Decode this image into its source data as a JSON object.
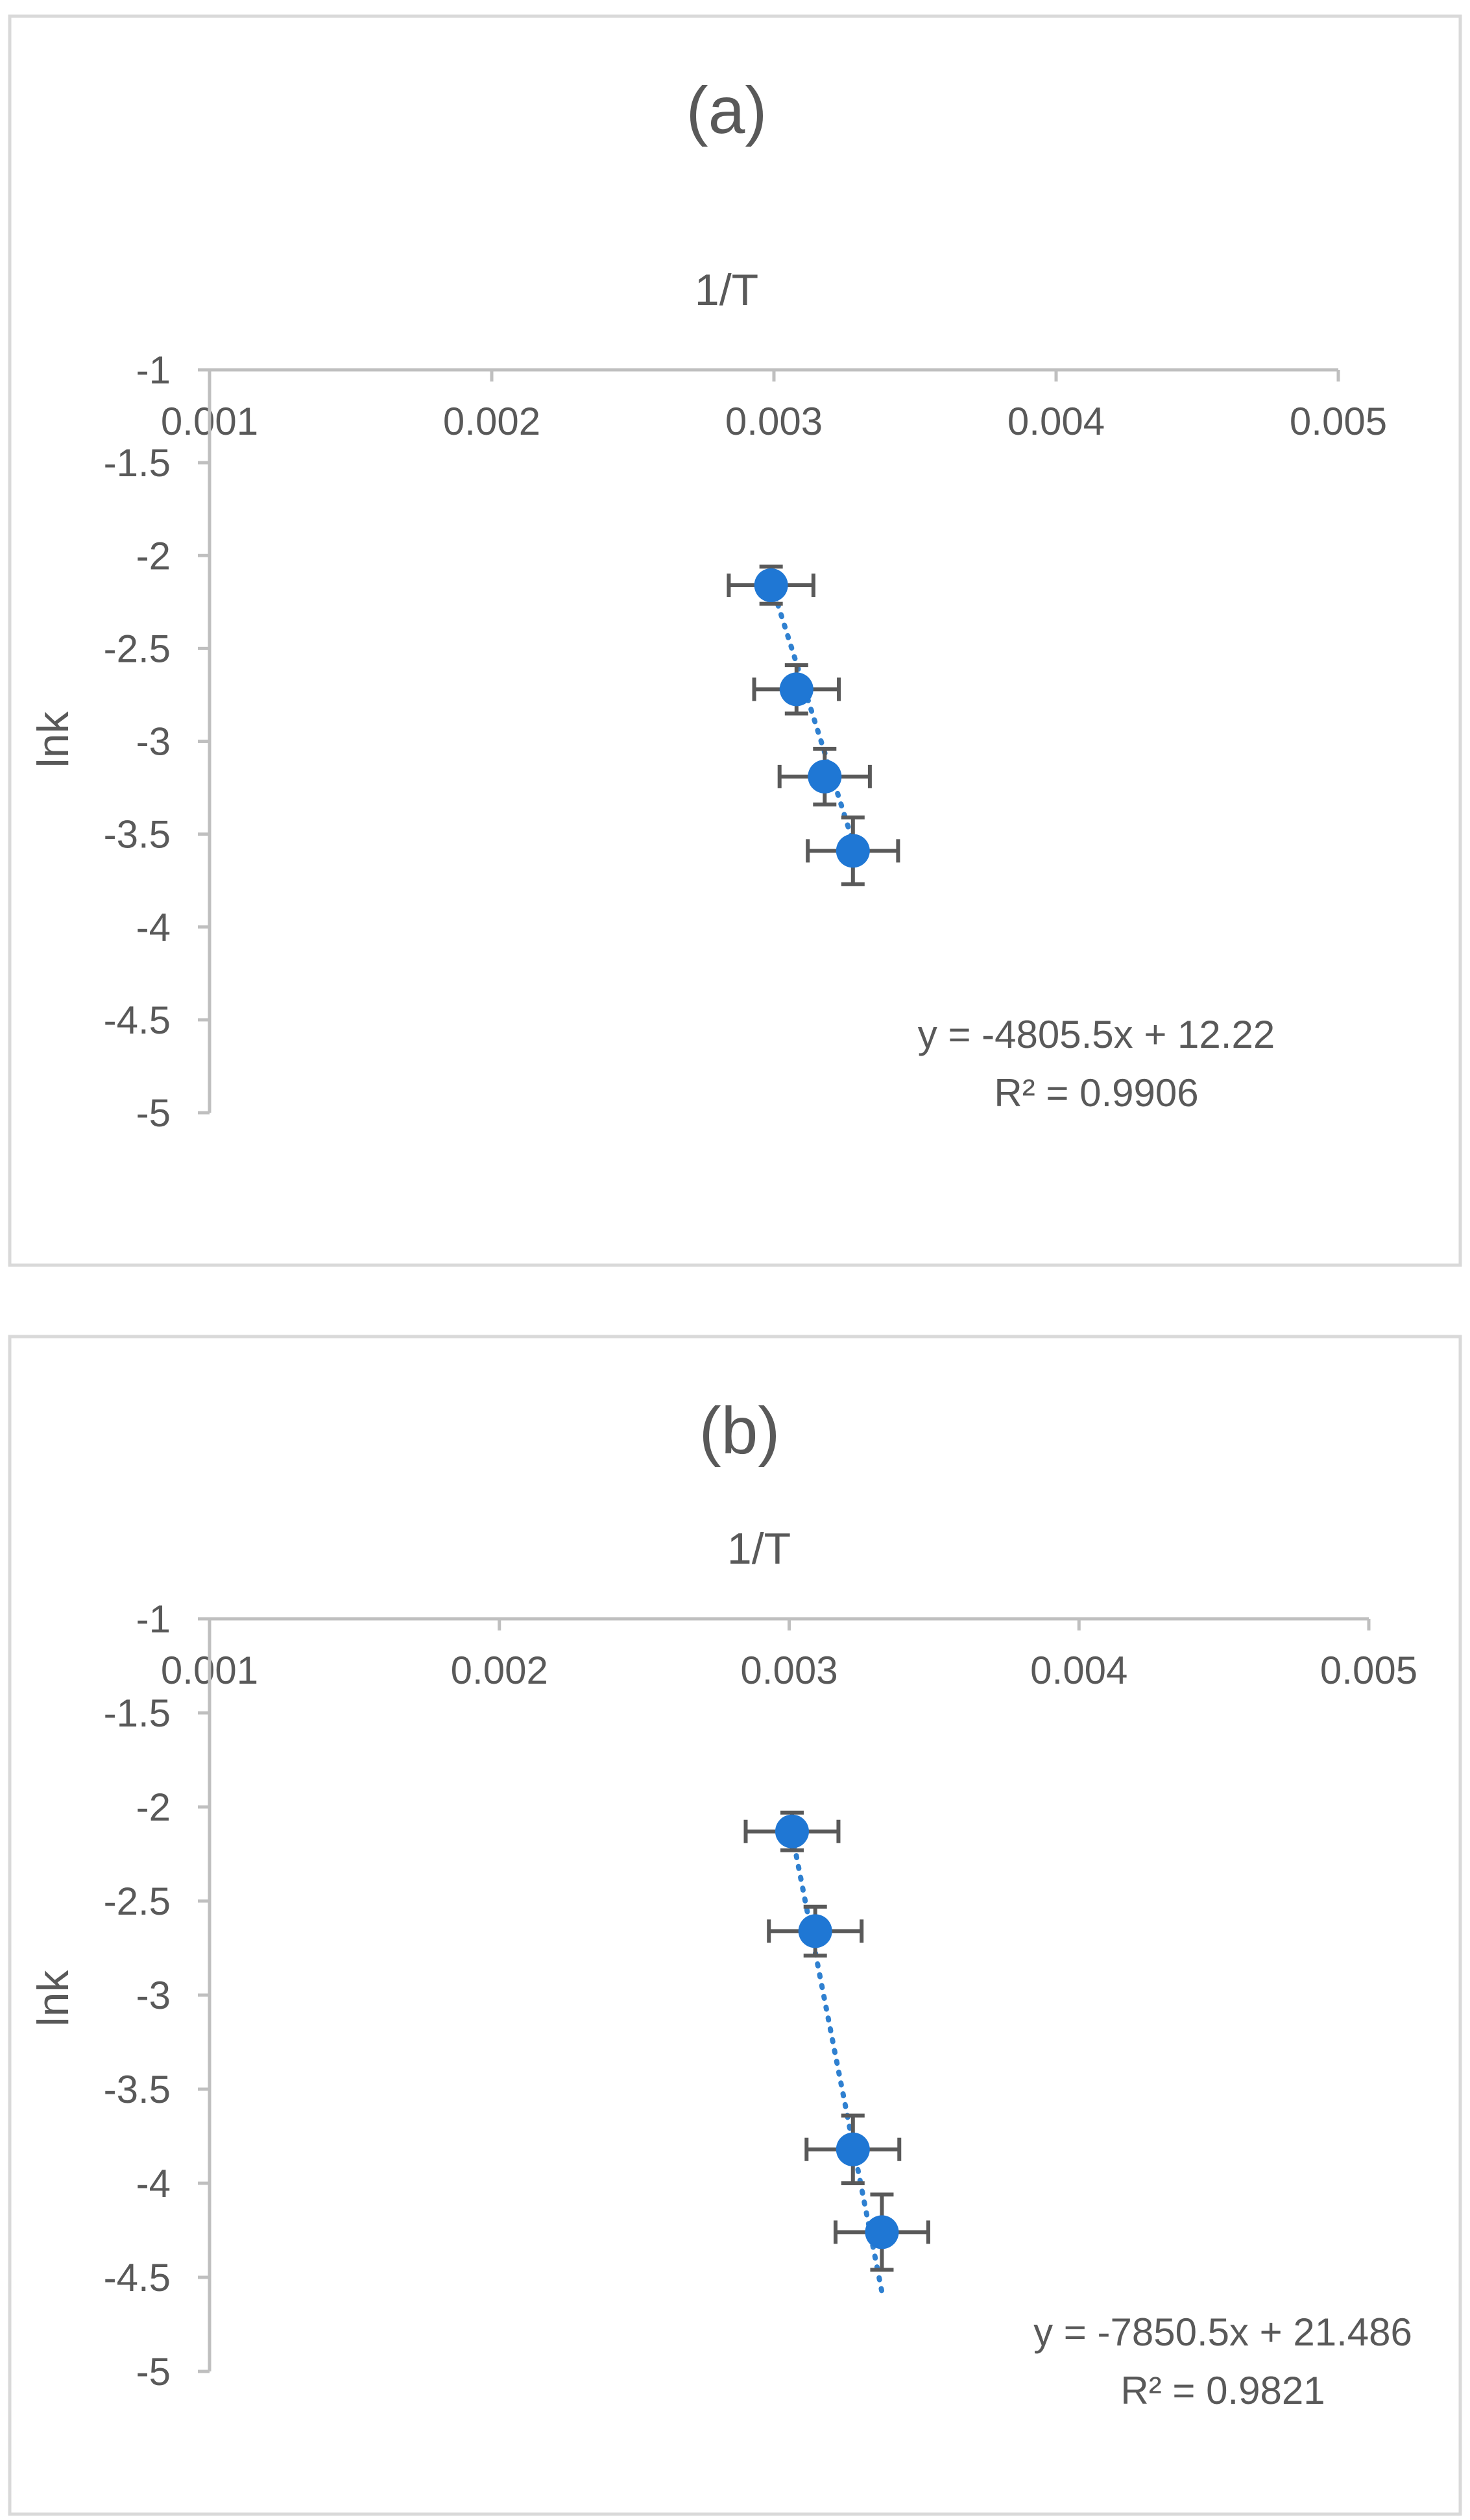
{
  "chart_data": [
    {
      "type": "scatter",
      "title": "(a)",
      "xlabel": "1/T",
      "ylabel": "lnk",
      "xlim": [
        0.001,
        0.005
      ],
      "ylim": [
        -5,
        -1
      ],
      "x_ticks": [
        "0.001",
        "0.002",
        "0.003",
        "0.004",
        "0.005"
      ],
      "y_ticks": [
        "-1",
        "-1.5",
        "-2",
        "-2.5",
        "-3",
        "-3.5",
        "-4",
        "-4.5",
        "-5"
      ],
      "series": [
        {
          "name": "lnk",
          "points": [
            {
              "x": 0.00299,
              "y": -2.16,
              "xerr": 0.00015,
              "yerr": 0.1
            },
            {
              "x": 0.00308,
              "y": -2.72,
              "xerr": 0.00015,
              "yerr": 0.13
            },
            {
              "x": 0.00318,
              "y": -3.19,
              "xerr": 0.00016,
              "yerr": 0.15
            },
            {
              "x": 0.00328,
              "y": -3.59,
              "xerr": 0.00016,
              "yerr": 0.18
            }
          ]
        }
      ],
      "trendline": {
        "slope": -4805.5,
        "intercept": 12.22,
        "equation": "y = -4805.5x + 12.22",
        "r2": "R² = 0.9906"
      }
    },
    {
      "type": "scatter",
      "title": "(b)",
      "xlabel": "1/T",
      "ylabel": "lnk",
      "xlim": [
        0.001,
        0.005
      ],
      "ylim": [
        -5,
        -1
      ],
      "x_ticks": [
        "0.001",
        "0.002",
        "0.003",
        "0.004",
        "0.005"
      ],
      "y_ticks": [
        "-1",
        "-1.5",
        "-2",
        "-2.5",
        "-3",
        "-3.5",
        "-4",
        "-4.5",
        "-5"
      ],
      "series": [
        {
          "name": "lnk",
          "points": [
            {
              "x": 0.00301,
              "y": -2.13,
              "xerr": 0.00016,
              "yerr": 0.1
            },
            {
              "x": 0.00309,
              "y": -2.66,
              "xerr": 0.00016,
              "yerr": 0.13
            },
            {
              "x": 0.00322,
              "y": -3.82,
              "xerr": 0.00016,
              "yerr": 0.18
            },
            {
              "x": 0.00332,
              "y": -4.26,
              "xerr": 0.00016,
              "yerr": 0.2
            }
          ]
        }
      ],
      "trendline": {
        "slope": -7850.5,
        "intercept": 21.486,
        "equation": "y = -7850.5x + 21.486",
        "r2": "R² = 0.9821"
      }
    }
  ]
}
